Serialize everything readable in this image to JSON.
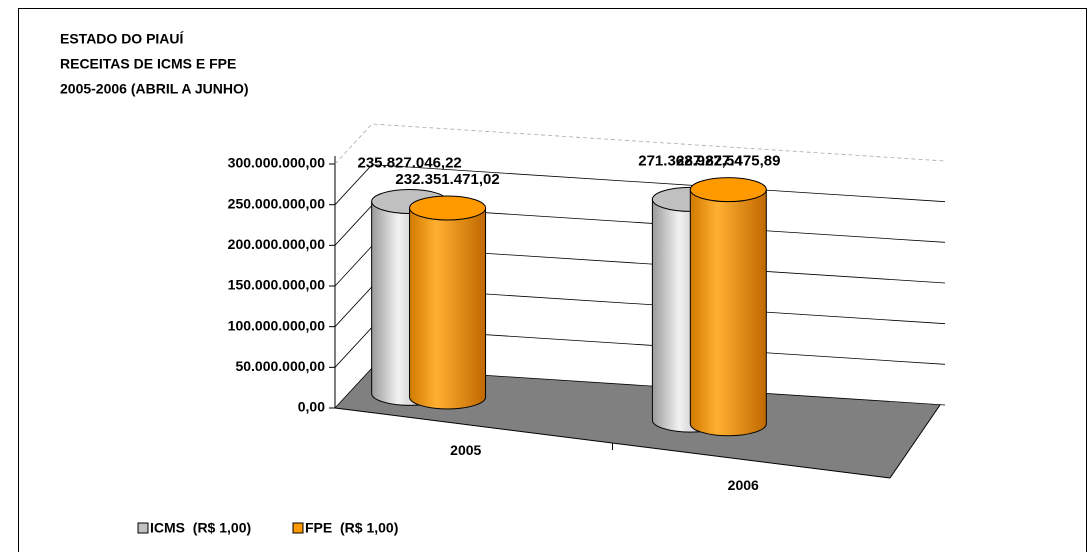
{
  "chart_data": {
    "type": "bar3d",
    "title": [
      "ESTADO DO PIAUÍ",
      "RECEITAS DE ICMS E FPE",
      "2005-2006 (ABRIL A JUNHO)"
    ],
    "categories": [
      "2005",
      "2006"
    ],
    "series": [
      {
        "name": "ICMS  (R$ 1,00)",
        "color": "#c0c0c0",
        "values": [
          235827046.22,
          271362927.54
        ],
        "value_labels": [
          "235.827.046,22",
          "271.362.927,54"
        ]
      },
      {
        "name": "FPE  (R$ 1,00)",
        "color": "#ff9900",
        "values": [
          232351471.02,
          287827475.89
        ],
        "value_labels": [
          "232.351.471,02",
          "287.827.475,89"
        ]
      }
    ],
    "ylim": [
      0,
      300000000
    ],
    "yticks": [
      {
        "value": 0,
        "label": "0,00"
      },
      {
        "value": 50000000,
        "label": "50.000.000,00"
      },
      {
        "value": 100000000,
        "label": "100.000.000,00"
      },
      {
        "value": 150000000,
        "label": "150.000.000,00"
      },
      {
        "value": 200000000,
        "label": "200.000.000,00"
      },
      {
        "value": 250000000,
        "label": "250.000.000,00"
      },
      {
        "value": 300000000,
        "label": "300.000.000,00"
      }
    ],
    "grid": true
  }
}
